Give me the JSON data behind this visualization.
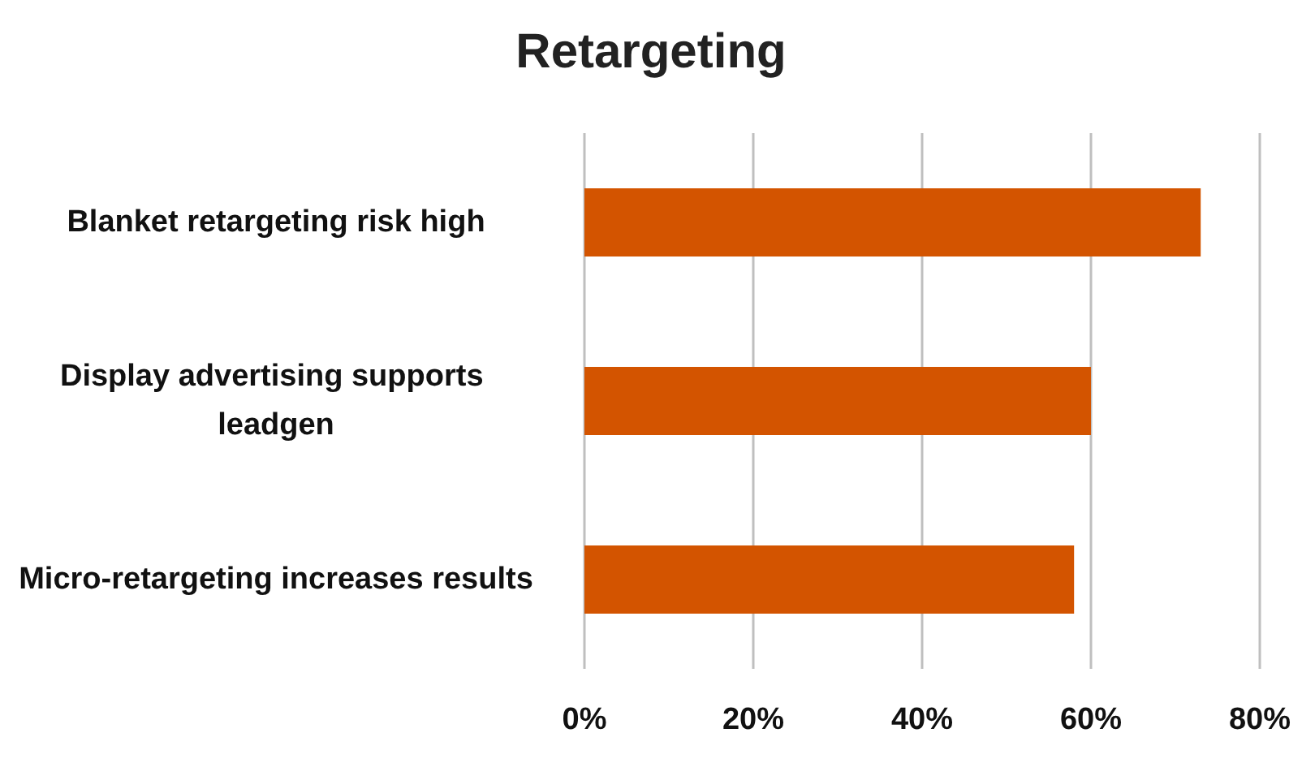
{
  "chart_data": {
    "type": "bar",
    "orientation": "horizontal",
    "title": "Retargeting",
    "categories": [
      "Blanket retargeting risk high",
      "Display advertising supports leadgen",
      "Micro-retargeting increases results"
    ],
    "values": [
      73,
      60,
      58
    ],
    "color": "#d35400",
    "xlim": [
      0,
      80
    ],
    "xticks": [
      {
        "value": 0,
        "label": "0%"
      },
      {
        "value": 20,
        "label": "20%"
      },
      {
        "value": 40,
        "label": "40%"
      },
      {
        "value": 60,
        "label": "60%"
      },
      {
        "value": 80,
        "label": "80%"
      }
    ],
    "grid": "x"
  }
}
